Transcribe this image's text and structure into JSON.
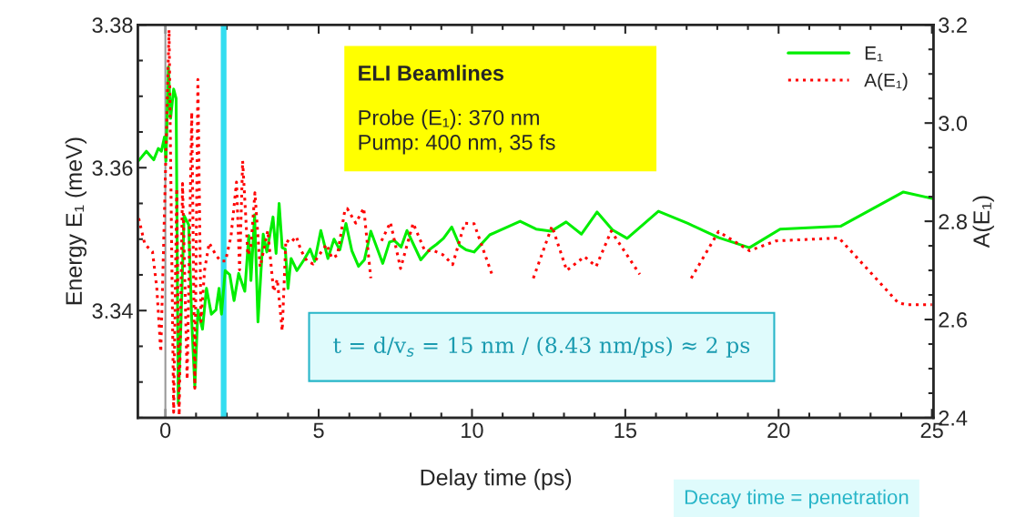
{
  "chart_data": {
    "type": "line",
    "xlabel": "Delay time (ps)",
    "ylabel": "Energy E₁ (meV)",
    "y2label": "A(E₁)",
    "xlim": [
      -0.9,
      25.05
    ],
    "xticks": [
      0,
      5,
      10,
      15,
      20,
      25
    ],
    "ylim": [
      3.325,
      3.38
    ],
    "yticks": [
      3.34,
      3.36,
      3.38
    ],
    "y2lim": [
      2.4,
      3.2
    ],
    "y2ticks": [
      {
        "value": 2.4,
        "label": "2.4"
      },
      {
        "value": 2.6,
        "label": "2.6"
      },
      {
        "value": 2.8,
        "label": "2.8"
      },
      {
        "value": 3.0,
        "label": "3.0"
      },
      {
        "value": 3.2,
        "label": "3.2"
      }
    ],
    "grid": false,
    "legend": "top right",
    "marker": "none",
    "series": [
      {
        "name": "E₁",
        "color": "#00ee00",
        "line_style": "solid",
        "x": [
          -0.87,
          -0.62,
          -0.38,
          -0.23,
          -0.13,
          -0.03,
          0.02,
          0.1,
          0.17,
          0.27,
          0.35,
          0.42,
          0.51,
          0.61,
          0.76,
          0.86,
          0.96,
          1.06,
          1.21,
          1.34,
          1.5,
          1.65,
          1.75,
          1.83,
          1.95,
          2.1,
          2.24,
          2.39,
          2.59,
          2.72,
          2.79,
          2.91,
          3.02,
          3.19,
          3.31,
          3.51,
          3.61,
          3.71,
          3.81,
          3.91,
          4.0,
          4.1,
          4.29,
          4.52,
          4.72,
          4.87,
          5.07,
          5.3,
          5.5,
          5.69,
          5.89,
          6.08,
          6.3,
          6.49,
          6.7,
          7.09,
          7.31,
          7.47,
          7.69,
          7.88,
          8.33,
          8.63,
          8.85,
          9.07,
          9.34,
          9.6,
          9.81,
          10.07,
          10.58,
          11.57,
          12.09,
          12.58,
          13.07,
          13.57,
          14.08,
          14.58,
          15.06,
          16.08,
          17.04,
          18.05,
          19.05,
          20.05,
          22.02,
          24.07,
          25.0
        ],
        "values": [
          3.361,
          3.3623,
          3.3611,
          3.3627,
          3.3623,
          3.3643,
          3.3609,
          3.3741,
          3.3669,
          3.371,
          3.3697,
          3.327,
          3.3385,
          3.3533,
          3.352,
          3.3385,
          3.3293,
          3.3401,
          3.3374,
          3.3431,
          3.3395,
          3.3401,
          3.3431,
          3.3395,
          3.3456,
          3.345,
          3.3414,
          3.3452,
          3.3427,
          3.3505,
          3.3442,
          3.3534,
          3.3384,
          3.3507,
          3.3482,
          3.3531,
          3.348,
          3.355,
          3.3488,
          3.3486,
          3.3431,
          3.3473,
          3.3456,
          3.3471,
          3.3486,
          3.3469,
          3.3512,
          3.3473,
          3.35,
          3.3485,
          3.3522,
          3.3484,
          3.3462,
          3.3471,
          3.3511,
          3.3466,
          3.3496,
          3.3498,
          3.3489,
          3.3512,
          3.3471,
          3.3486,
          3.3493,
          3.3501,
          3.3517,
          3.3491,
          3.3485,
          3.3482,
          3.3506,
          3.3525,
          3.3514,
          3.3511,
          3.3524,
          3.3507,
          3.3538,
          3.3513,
          3.3501,
          3.3539,
          3.3522,
          3.3502,
          3.3488,
          3.3514,
          3.3518,
          3.3566,
          3.3557
        ]
      },
      {
        "name": "A(E₁)",
        "color": "#ff0000",
        "line_style": "dotted",
        "axis": "y2",
        "x": [
          -0.87,
          -0.67,
          -0.42,
          -0.28,
          -0.15,
          -0.05,
          0.12,
          0.27,
          0.37,
          0.45,
          0.56,
          0.71,
          0.86,
          0.96,
          1.06,
          1.16,
          1.28,
          1.43,
          1.65,
          1.8,
          1.96,
          2.14,
          2.32,
          2.42,
          2.52,
          2.69,
          2.79,
          2.92,
          3.09,
          3.34,
          3.53,
          3.65,
          3.81,
          3.93,
          4.08,
          4.27,
          4.42,
          4.62,
          4.82,
          5.01,
          5.26,
          5.43,
          5.61,
          5.85,
          5.93,
          6.21,
          6.47,
          6.7,
          6.85,
          7.05,
          7.34,
          7.67,
          8.08,
          8.46,
          8.76,
          9.05,
          9.37,
          9.76,
          10.07,
          10.65,
          11.3,
          12.0,
          12.61,
          13.09,
          13.67,
          14.05,
          14.54,
          15.47,
          16.3,
          17.15,
          18.04,
          19.05,
          19.91,
          21.97,
          23.9,
          24.2,
          25.0
        ],
        "values": [
          2.806,
          2.753,
          2.738,
          2.664,
          2.534,
          2.769,
          3.19,
          2.411,
          2.867,
          2.405,
          2.877,
          2.478,
          3.022,
          2.46,
          3.089,
          2.596,
          2.701,
          2.756,
          2.731,
          2.719,
          2.719,
          2.769,
          2.88,
          2.701,
          2.923,
          2.731,
          2.75,
          2.858,
          2.707,
          2.781,
          2.657,
          2.682,
          2.577,
          2.762,
          2.756,
          2.769,
          2.741,
          2.719,
          2.713,
          2.731,
          2.753,
          2.725,
          2.731,
          2.821,
          2.826,
          2.796,
          2.827,
          2.684,
          null,
          2.76,
          2.798,
          2.704,
          2.796,
          2.74,
          2.74,
          2.732,
          2.712,
          2.796,
          2.795,
          2.692,
          null,
          2.684,
          2.79,
          2.7,
          2.728,
          2.708,
          2.78,
          2.692,
          null,
          2.684,
          2.779,
          2.74,
          2.76,
          2.766,
          2.634,
          2.63,
          2.63
        ]
      }
    ],
    "ref_lines": [
      {
        "axis": "x",
        "value": 0,
        "color": "#999999"
      },
      {
        "axis": "x",
        "value": 1.9,
        "color": "#33ddf0"
      }
    ],
    "annotations": [
      "ELI Beamlines",
      "Probe (E₁): 370 nm\nPump: 400 nm, 35 fs",
      "t = d/v$_{s}$ = 15 nm / (8.43 nm/ps) ≈ 2 ps",
      "Decay time = penetration"
    ]
  }
}
